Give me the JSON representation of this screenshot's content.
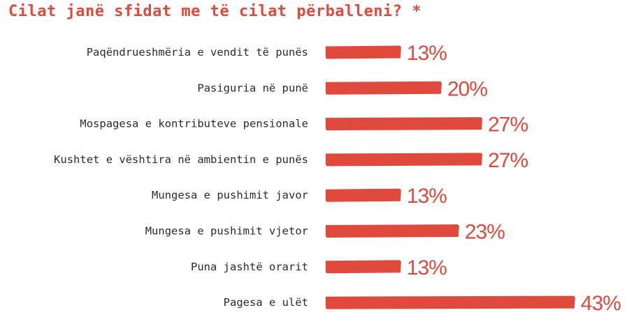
{
  "colors": {
    "accent": "#e04a3c",
    "text": "#2b2b2b",
    "background": "#ffffff"
  },
  "chart_data": {
    "type": "bar",
    "orientation": "horizontal",
    "title": "Cilat janë sfidat me të cilat përballeni? *",
    "categories": [
      "Paqëndrueshmëria e vendit të punës",
      "Pasiguria në punë",
      "Mospagesa e kontributeve pensionale",
      "Kushtet e vështira në ambientin e punës",
      "Mungesa e pushimit javor",
      "Mungesa e pushimit vjetor",
      "Puna jashtë orarit",
      "Pagesa e ulët"
    ],
    "values": [
      13,
      20,
      27,
      27,
      13,
      23,
      13,
      43
    ],
    "value_labels": [
      "13%",
      "20%",
      "27%",
      "27%",
      "13%",
      "23%",
      "13%",
      "43%"
    ],
    "unit": "%",
    "xlim": [
      0,
      43
    ],
    "grid": false,
    "legend": "none"
  }
}
